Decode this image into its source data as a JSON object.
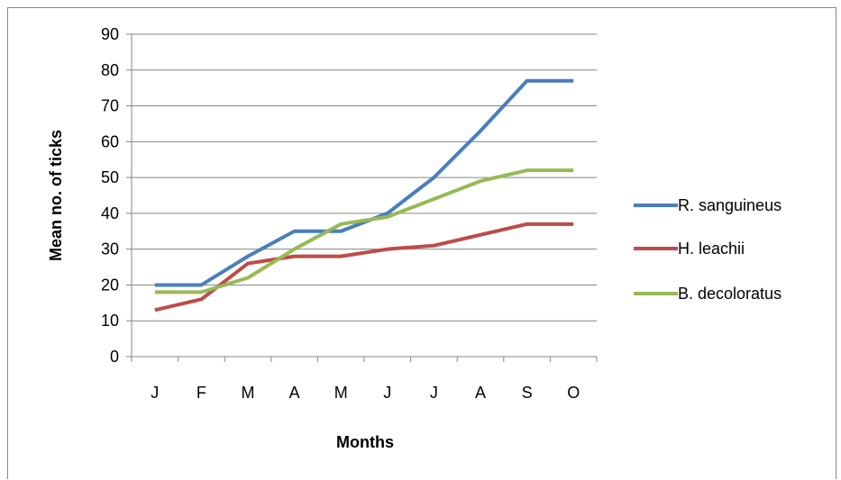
{
  "chart_data": {
    "type": "line",
    "title": "",
    "xlabel": "Months",
    "ylabel": "Mean no. of ticks",
    "categories": [
      "J",
      "F",
      "M",
      "A",
      "M",
      "J",
      "J",
      "A",
      "S",
      "O"
    ],
    "ylim": [
      0,
      90
    ],
    "yticks": [
      "0",
      "10",
      "20",
      "30",
      "40",
      "50",
      "60",
      "70",
      "80",
      "90"
    ],
    "grid": true,
    "legend_position": "right",
    "series": [
      {
        "name": "R. sanguineus",
        "color": "#4a7ebb",
        "values": [
          20,
          20,
          28,
          35,
          35,
          40,
          50,
          63,
          77,
          77
        ]
      },
      {
        "name": "H. leachii",
        "color": "#be4b48",
        "values": [
          13,
          16,
          26,
          28,
          28,
          30,
          31,
          34,
          37,
          37
        ]
      },
      {
        "name": "B. decoloratus",
        "color": "#98b954",
        "values": [
          18,
          18,
          22,
          30,
          37,
          39,
          44,
          49,
          52,
          52
        ]
      }
    ]
  }
}
